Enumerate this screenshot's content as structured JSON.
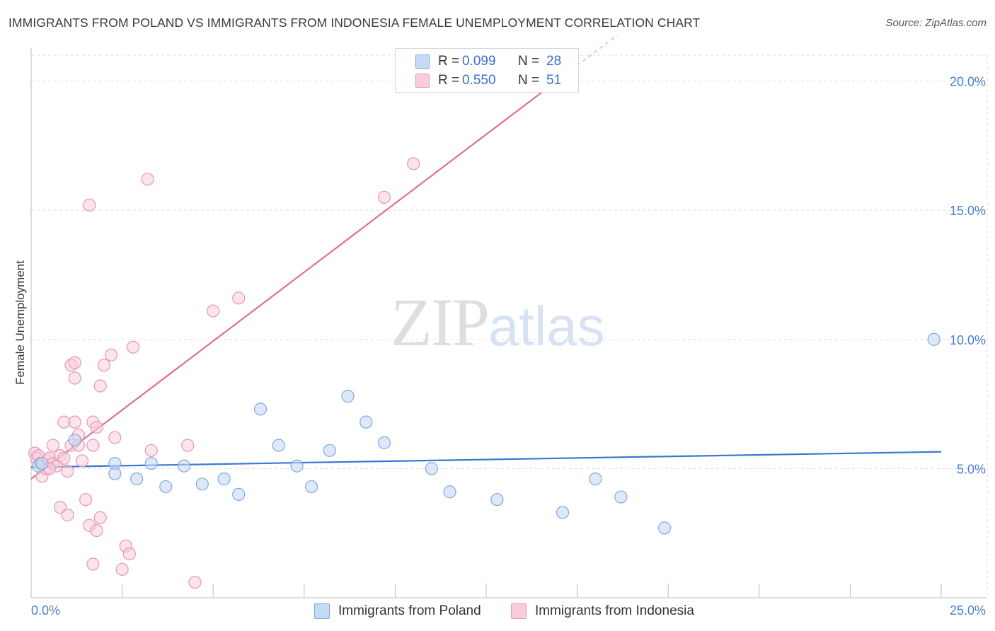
{
  "header": {
    "title": "IMMIGRANTS FROM POLAND VS IMMIGRANTS FROM INDONESIA FEMALE UNEMPLOYMENT CORRELATION CHART",
    "source": "Source: ZipAtlas.com"
  },
  "watermark": {
    "zip": "ZIP",
    "atlas": "atlas"
  },
  "legend": {
    "rows": [
      {
        "r_label": "R =",
        "r_value": "0.099",
        "n_label": "N =",
        "n_value": "28",
        "color": "#a9c8ef"
      },
      {
        "r_label": "R =",
        "r_value": "0.550",
        "n_label": "N =",
        "n_value": "51",
        "color": "#f4b7cb"
      }
    ]
  },
  "bottom_legend": {
    "poland": "Immigrants from Poland",
    "indonesia": "Immigrants from Indonesia"
  },
  "colors": {
    "poland_fill": "#c6daf5",
    "poland_stroke": "#7fa8e0",
    "poland_line": "#3a78d0",
    "indonesia_fill": "#f8cdda",
    "indonesia_stroke": "#e896b0",
    "indonesia_line": "#e36d97",
    "axis_tick_text": "#4a7fd0",
    "grid": "#dddddd"
  },
  "chart_data": {
    "type": "scatter",
    "title": "IMMIGRANTS FROM POLAND VS IMMIGRANTS FROM INDONESIA FEMALE UNEMPLOYMENT CORRELATION CHART",
    "xlabel": "",
    "ylabel": "Female Unemployment",
    "xlim": [
      0,
      25
    ],
    "ylim": [
      0,
      21
    ],
    "x_tick_labels": [
      "0.0%",
      "25.0%"
    ],
    "y_ticks": [
      5,
      10,
      15,
      20
    ],
    "y_tick_labels": [
      "5.0%",
      "10.0%",
      "15.0%",
      "20.0%"
    ],
    "grid": true,
    "series": [
      {
        "name": "Immigrants from Poland",
        "points": [
          [
            0.2,
            5.1
          ],
          [
            0.3,
            5.2
          ],
          [
            1.2,
            6.1
          ],
          [
            2.3,
            5.2
          ],
          [
            2.3,
            4.8
          ],
          [
            2.9,
            4.6
          ],
          [
            3.3,
            5.2
          ],
          [
            3.7,
            4.3
          ],
          [
            4.2,
            5.1
          ],
          [
            4.7,
            4.4
          ],
          [
            5.3,
            4.6
          ],
          [
            5.7,
            4.0
          ],
          [
            6.3,
            7.3
          ],
          [
            6.8,
            5.9
          ],
          [
            7.3,
            5.1
          ],
          [
            7.7,
            4.3
          ],
          [
            8.2,
            5.7
          ],
          [
            8.7,
            7.8
          ],
          [
            9.2,
            6.8
          ],
          [
            9.7,
            6.0
          ],
          [
            11.0,
            5.0
          ],
          [
            11.5,
            4.1
          ],
          [
            12.8,
            3.8
          ],
          [
            14.6,
            3.3
          ],
          [
            15.5,
            4.6
          ],
          [
            16.2,
            3.9
          ],
          [
            17.4,
            2.7
          ],
          [
            24.8,
            10.0
          ]
        ],
        "trend": {
          "x": [
            0,
            25
          ],
          "y": [
            5.05,
            5.65
          ]
        }
      },
      {
        "name": "Immigrants from Indonesia",
        "points": [
          [
            0.1,
            5.6
          ],
          [
            0.15,
            5.4
          ],
          [
            0.2,
            5.5
          ],
          [
            0.25,
            5.2
          ],
          [
            0.3,
            4.7
          ],
          [
            0.4,
            5.0
          ],
          [
            0.45,
            5.3
          ],
          [
            0.5,
            5.4
          ],
          [
            0.6,
            5.2
          ],
          [
            0.7,
            5.1
          ],
          [
            0.8,
            5.5
          ],
          [
            0.9,
            5.4
          ],
          [
            0.5,
            5.0
          ],
          [
            0.6,
            5.9
          ],
          [
            0.8,
            3.5
          ],
          [
            0.9,
            6.8
          ],
          [
            1.0,
            4.9
          ],
          [
            1.0,
            3.2
          ],
          [
            1.1,
            5.9
          ],
          [
            1.1,
            9.0
          ],
          [
            1.2,
            9.1
          ],
          [
            1.2,
            8.5
          ],
          [
            1.2,
            6.8
          ],
          [
            1.3,
            6.3
          ],
          [
            1.3,
            5.9
          ],
          [
            1.4,
            5.3
          ],
          [
            1.5,
            3.8
          ],
          [
            1.6,
            2.8
          ],
          [
            1.6,
            15.2
          ],
          [
            1.7,
            5.9
          ],
          [
            1.7,
            1.3
          ],
          [
            1.7,
            6.8
          ],
          [
            1.8,
            6.6
          ],
          [
            1.8,
            2.6
          ],
          [
            1.9,
            3.1
          ],
          [
            1.9,
            8.2
          ],
          [
            2.0,
            9.0
          ],
          [
            2.2,
            9.4
          ],
          [
            2.3,
            6.2
          ],
          [
            2.5,
            1.1
          ],
          [
            2.6,
            2.0
          ],
          [
            2.7,
            1.7
          ],
          [
            2.8,
            9.7
          ],
          [
            3.2,
            16.2
          ],
          [
            3.3,
            5.7
          ],
          [
            4.3,
            5.9
          ],
          [
            4.5,
            0.6
          ],
          [
            5.0,
            11.1
          ],
          [
            5.7,
            11.6
          ],
          [
            9.7,
            15.5
          ],
          [
            10.5,
            16.8
          ]
        ],
        "trend": {
          "x": [
            0,
            15
          ],
          "y": [
            4.6,
            20.6
          ]
        }
      }
    ]
  }
}
